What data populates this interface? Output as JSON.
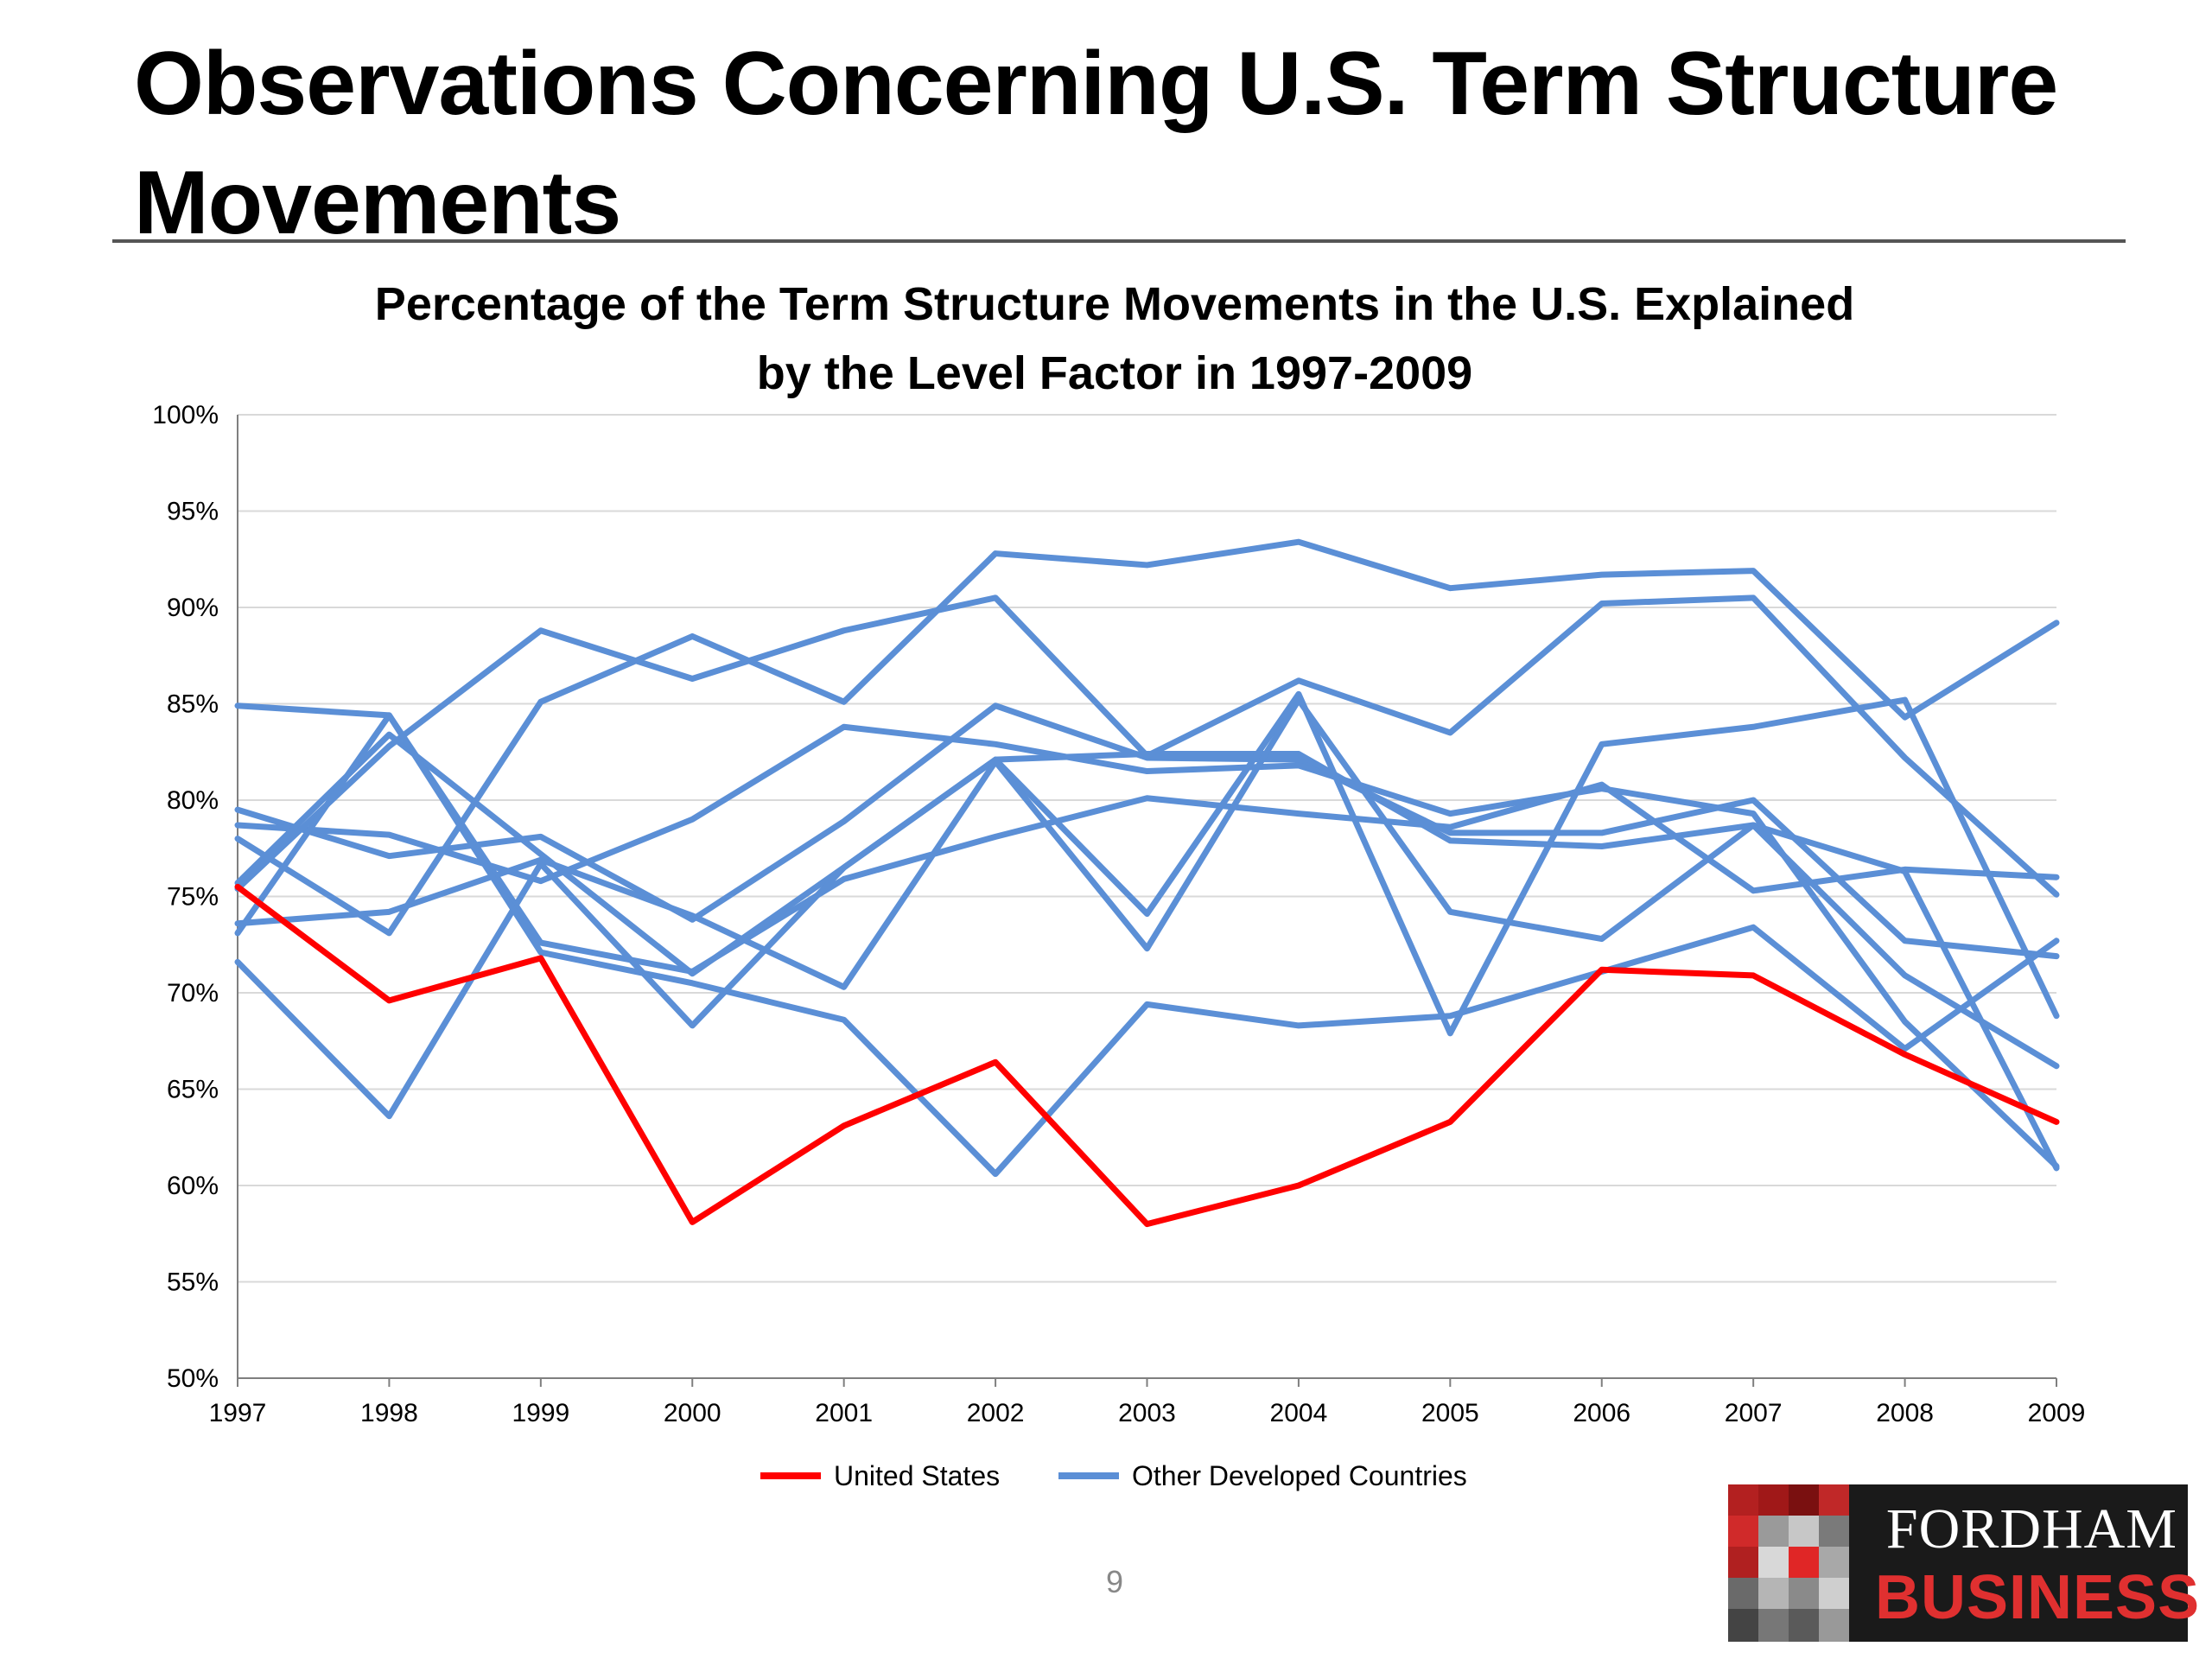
{
  "slide": {
    "title": "Observations Concerning U.S. Term Structure Movements",
    "page_number": "9"
  },
  "logo": {
    "line1": "FORDHAM",
    "line2": "BUSINESS"
  },
  "colors": {
    "us": "#ff0000",
    "other": "#5b8fd6",
    "grid": "#d9d9d9",
    "axis": "#7f7f7f"
  },
  "chart_data": {
    "type": "line",
    "title_lines": [
      "Percentage of the Term Structure Movements in the U.S. Explained",
      "by the Level Factor in 1997-2009"
    ],
    "x": [
      "1997",
      "1998",
      "1999",
      "2000",
      "2001",
      "2002",
      "2003",
      "2004",
      "2005",
      "2006",
      "2007",
      "2008",
      "2009"
    ],
    "ylim": [
      0.5,
      1.0
    ],
    "yticks": [
      0.5,
      0.55,
      0.6,
      0.65,
      0.7,
      0.75,
      0.8,
      0.85,
      0.9,
      0.95,
      1.0
    ],
    "ytick_labels": [
      "50%",
      "55%",
      "60%",
      "65%",
      "70%",
      "75%",
      "80%",
      "85%",
      "90%",
      "95%",
      "100%"
    ],
    "grid": true,
    "legend_position": "bottom",
    "legend": [
      "United States",
      "Other Developed Countries"
    ],
    "series": [
      {
        "name": "United States",
        "group": "us",
        "values": [
          0.755,
          0.696,
          0.718,
          0.581,
          0.631,
          0.664,
          0.58,
          0.6,
          0.633,
          0.712,
          0.709,
          0.668,
          0.633
        ]
      },
      {
        "group": "other",
        "values": [
          0.849,
          0.844,
          0.726,
          0.711,
          0.759,
          0.781,
          0.801,
          0.793,
          0.786,
          0.808,
          0.753,
          0.764,
          0.76
        ]
      },
      {
        "group": "other",
        "values": [
          0.795,
          0.771,
          0.781,
          0.738,
          0.789,
          0.849,
          0.822,
          0.821,
          0.783,
          0.783,
          0.8,
          0.727,
          0.719
        ]
      },
      {
        "group": "other",
        "values": [
          0.787,
          0.782,
          0.758,
          0.79,
          0.838,
          0.829,
          0.815,
          0.818,
          0.793,
          0.806,
          0.793,
          0.685,
          0.61
        ]
      },
      {
        "group": "other",
        "values": [
          0.757,
          0.834,
          0.772,
          0.71,
          0.765,
          0.821,
          0.824,
          0.824,
          0.779,
          0.776,
          0.787,
          0.763,
          0.609
        ]
      },
      {
        "group": "other",
        "values": [
          0.78,
          0.731,
          0.851,
          0.885,
          0.851,
          0.928,
          0.922,
          0.934,
          0.91,
          0.917,
          0.919,
          0.843,
          0.892
        ]
      },
      {
        "group": "other",
        "values": [
          0.754,
          0.828,
          0.888,
          0.863,
          0.888,
          0.905,
          0.823,
          0.862,
          0.835,
          0.902,
          0.905,
          0.822,
          0.751
        ]
      },
      {
        "group": "other",
        "values": [
          0.716,
          0.636,
          0.767,
          0.683,
          0.765,
          0.821,
          0.741,
          0.855,
          0.679,
          0.829,
          0.838,
          0.852,
          0.688
        ]
      },
      {
        "group": "other",
        "values": [
          0.736,
          0.742,
          0.769,
          0.74,
          0.703,
          0.82,
          0.723,
          0.852,
          0.742,
          0.728,
          0.787,
          0.709,
          0.662
        ]
      },
      {
        "group": "other",
        "values": [
          0.731,
          0.844,
          0.721,
          0.705,
          0.686,
          0.606,
          0.694,
          0.683,
          0.688,
          0.711,
          0.734,
          0.671,
          0.727
        ]
      }
    ]
  }
}
